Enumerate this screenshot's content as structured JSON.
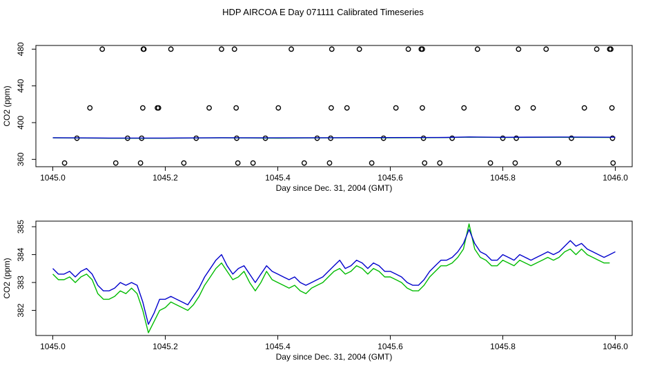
{
  "title": "HDP AIRCOA E  Day 071111  Calibrated Timeseries",
  "chart_data": [
    {
      "type": "scatter",
      "xlabel": "Day since Dec. 31, 2004 (GMT)",
      "ylabel": "CO2 (ppm)",
      "xlim": [
        1044.97,
        1046.03
      ],
      "ylim": [
        352,
        484
      ],
      "xticks": [
        1045.0,
        1045.2,
        1045.4,
        1045.6,
        1045.8,
        1046.0
      ],
      "xtick_labels": [
        "1045.0",
        "1045.2",
        "1045.4",
        "1045.6",
        "1045.8",
        "1046.0"
      ],
      "yticks": [
        360,
        400,
        440,
        480
      ],
      "ytick_labels": [
        "360",
        "400",
        "440",
        "480"
      ],
      "grid": false,
      "series": [
        {
          "color": "#000000",
          "marker": "open-circle",
          "points": [
            [
              1045.088,
              480
            ],
            [
              1045.161,
              480
            ],
            [
              1045.162,
              480
            ],
            [
              1045.21,
              480
            ],
            [
              1045.3,
              480
            ],
            [
              1045.323,
              480
            ],
            [
              1045.424,
              480
            ],
            [
              1045.496,
              480
            ],
            [
              1045.545,
              480
            ],
            [
              1045.632,
              480
            ],
            [
              1045.655,
              480
            ],
            [
              1045.657,
              480
            ],
            [
              1045.755,
              480
            ],
            [
              1045.828,
              480
            ],
            [
              1045.877,
              480
            ],
            [
              1045.967,
              480
            ],
            [
              1045.99,
              480
            ],
            [
              1045.992,
              480
            ],
            [
              1045.066,
              416
            ],
            [
              1045.16,
              416
            ],
            [
              1045.186,
              416
            ],
            [
              1045.188,
              416
            ],
            [
              1045.278,
              416
            ],
            [
              1045.326,
              416
            ],
            [
              1045.401,
              416
            ],
            [
              1045.495,
              416
            ],
            [
              1045.523,
              416
            ],
            [
              1045.61,
              416
            ],
            [
              1045.657,
              416
            ],
            [
              1045.731,
              416
            ],
            [
              1045.826,
              416
            ],
            [
              1045.854,
              416
            ],
            [
              1045.945,
              416
            ],
            [
              1045.994,
              416
            ],
            [
              1045.043,
              383
            ],
            [
              1045.133,
              383
            ],
            [
              1045.158,
              383
            ],
            [
              1045.255,
              383
            ],
            [
              1045.327,
              383
            ],
            [
              1045.378,
              383
            ],
            [
              1045.47,
              383
            ],
            [
              1045.494,
              383
            ],
            [
              1045.588,
              383
            ],
            [
              1045.659,
              383
            ],
            [
              1045.71,
              383
            ],
            [
              1045.8,
              383
            ],
            [
              1045.824,
              383
            ],
            [
              1045.922,
              383
            ],
            [
              1045.995,
              383
            ],
            [
              1045.021,
              356
            ],
            [
              1045.112,
              356
            ],
            [
              1045.156,
              356
            ],
            [
              1045.233,
              356
            ],
            [
              1045.329,
              356
            ],
            [
              1045.356,
              356
            ],
            [
              1045.447,
              356
            ],
            [
              1045.492,
              356
            ],
            [
              1045.567,
              356
            ],
            [
              1045.661,
              356
            ],
            [
              1045.688,
              356
            ],
            [
              1045.778,
              356
            ],
            [
              1045.822,
              356
            ],
            [
              1045.899,
              356
            ],
            [
              1045.996,
              356
            ]
          ]
        },
        {
          "color": "#00bb00",
          "x": [
            1045.0,
            1045.1,
            1045.2,
            1045.3,
            1045.4,
            1045.5,
            1045.6,
            1045.7,
            1045.74,
            1045.8,
            1045.9,
            1045.99
          ],
          "y": [
            383.4,
            383.0,
            383.0,
            383.4,
            383.1,
            383.4,
            383.5,
            383.7,
            384.2,
            383.8,
            384.0,
            383.8
          ]
        },
        {
          "color": "#0000cc",
          "x": [
            1045.0,
            1045.1,
            1045.2,
            1045.3,
            1045.4,
            1045.5,
            1045.6,
            1045.7,
            1045.74,
            1045.8,
            1045.9,
            1046.0
          ],
          "y": [
            383.6,
            383.2,
            383.2,
            383.6,
            383.4,
            383.6,
            383.7,
            383.9,
            384.4,
            384.0,
            384.3,
            384.1
          ]
        }
      ]
    },
    {
      "type": "line",
      "xlabel": "Day since Dec. 31, 2004 (GMT)",
      "ylabel": "CO2 (ppm)",
      "xlim": [
        1044.97,
        1046.03
      ],
      "ylim": [
        381.1,
        385.2
      ],
      "xticks": [
        1045.0,
        1045.2,
        1045.4,
        1045.6,
        1045.8,
        1046.0
      ],
      "xtick_labels": [
        "1045.0",
        "1045.2",
        "1045.4",
        "1045.6",
        "1045.8",
        "1046.0"
      ],
      "yticks": [
        382,
        383,
        384,
        385
      ],
      "ytick_labels": [
        "382",
        "383",
        "384",
        "385"
      ],
      "grid": false,
      "series": [
        {
          "color": "#00bb00",
          "x": [
            1045.0,
            1045.01,
            1045.02,
            1045.03,
            1045.04,
            1045.05,
            1045.06,
            1045.07,
            1045.08,
            1045.09,
            1045.1,
            1045.11,
            1045.12,
            1045.13,
            1045.14,
            1045.15,
            1045.16,
            1045.165,
            1045.17,
            1045.18,
            1045.19,
            1045.2,
            1045.21,
            1045.22,
            1045.23,
            1045.24,
            1045.25,
            1045.26,
            1045.27,
            1045.28,
            1045.29,
            1045.3,
            1045.31,
            1045.32,
            1045.33,
            1045.34,
            1045.35,
            1045.36,
            1045.37,
            1045.38,
            1045.39,
            1045.4,
            1045.41,
            1045.42,
            1045.43,
            1045.44,
            1045.45,
            1045.46,
            1045.47,
            1045.48,
            1045.49,
            1045.5,
            1045.51,
            1045.52,
            1045.53,
            1045.54,
            1045.55,
            1045.56,
            1045.57,
            1045.58,
            1045.59,
            1045.6,
            1045.61,
            1045.62,
            1045.63,
            1045.64,
            1045.65,
            1045.66,
            1045.67,
            1045.68,
            1045.69,
            1045.7,
            1045.71,
            1045.72,
            1045.73,
            1045.74,
            1045.75,
            1045.76,
            1045.77,
            1045.78,
            1045.79,
            1045.8,
            1045.81,
            1045.82,
            1045.83,
            1045.84,
            1045.85,
            1045.86,
            1045.87,
            1045.88,
            1045.89,
            1045.9,
            1045.91,
            1045.92,
            1045.93,
            1045.94,
            1045.95,
            1045.96,
            1045.97,
            1045.98,
            1045.99
          ],
          "y": [
            383.3,
            383.1,
            383.1,
            383.2,
            383.0,
            383.2,
            383.3,
            383.1,
            382.6,
            382.4,
            382.4,
            382.5,
            382.7,
            382.6,
            382.8,
            382.6,
            382.0,
            381.6,
            381.2,
            381.6,
            382.0,
            382.1,
            382.3,
            382.2,
            382.1,
            382.0,
            382.2,
            382.5,
            382.9,
            383.2,
            383.5,
            383.7,
            383.4,
            383.1,
            383.2,
            383.4,
            383.0,
            382.7,
            383.0,
            383.4,
            383.1,
            383.0,
            382.9,
            382.8,
            382.9,
            382.7,
            382.6,
            382.8,
            382.9,
            383.0,
            383.2,
            383.4,
            383.5,
            383.3,
            383.4,
            383.6,
            383.5,
            383.3,
            383.5,
            383.4,
            383.2,
            383.2,
            383.1,
            383.0,
            382.8,
            382.7,
            382.7,
            382.9,
            383.2,
            383.4,
            383.6,
            383.6,
            383.7,
            383.9,
            384.2,
            385.1,
            384.2,
            383.9,
            383.8,
            383.6,
            383.6,
            383.8,
            383.7,
            383.6,
            383.8,
            383.7,
            383.6,
            383.7,
            383.8,
            383.9,
            383.8,
            383.9,
            384.1,
            384.2,
            384.0,
            384.2,
            384.0,
            383.9,
            383.8,
            383.7,
            383.7
          ]
        },
        {
          "color": "#0000cc",
          "x": [
            1045.0,
            1045.01,
            1045.02,
            1045.03,
            1045.04,
            1045.05,
            1045.06,
            1045.07,
            1045.08,
            1045.09,
            1045.1,
            1045.11,
            1045.12,
            1045.13,
            1045.14,
            1045.15,
            1045.16,
            1045.165,
            1045.17,
            1045.18,
            1045.19,
            1045.2,
            1045.21,
            1045.22,
            1045.23,
            1045.24,
            1045.25,
            1045.26,
            1045.27,
            1045.28,
            1045.29,
            1045.3,
            1045.31,
            1045.32,
            1045.33,
            1045.34,
            1045.35,
            1045.36,
            1045.37,
            1045.38,
            1045.39,
            1045.4,
            1045.41,
            1045.42,
            1045.43,
            1045.44,
            1045.45,
            1045.46,
            1045.47,
            1045.48,
            1045.49,
            1045.5,
            1045.51,
            1045.52,
            1045.53,
            1045.54,
            1045.55,
            1045.56,
            1045.57,
            1045.58,
            1045.59,
            1045.6,
            1045.61,
            1045.62,
            1045.63,
            1045.64,
            1045.65,
            1045.66,
            1045.67,
            1045.68,
            1045.69,
            1045.7,
            1045.71,
            1045.72,
            1045.73,
            1045.74,
            1045.75,
            1045.76,
            1045.77,
            1045.78,
            1045.79,
            1045.8,
            1045.81,
            1045.82,
            1045.83,
            1045.84,
            1045.85,
            1045.86,
            1045.87,
            1045.88,
            1045.89,
            1045.9,
            1045.91,
            1045.92,
            1045.93,
            1045.94,
            1045.95,
            1045.96,
            1045.97,
            1045.98,
            1045.99,
            1046.0
          ],
          "y": [
            383.5,
            383.3,
            383.3,
            383.4,
            383.2,
            383.4,
            383.5,
            383.3,
            382.9,
            382.7,
            382.7,
            382.8,
            383.0,
            382.9,
            383.0,
            382.9,
            382.3,
            381.9,
            381.5,
            381.9,
            382.4,
            382.4,
            382.5,
            382.4,
            382.3,
            382.2,
            382.5,
            382.8,
            383.2,
            383.5,
            383.8,
            384.0,
            383.6,
            383.3,
            383.5,
            383.6,
            383.3,
            383.0,
            383.3,
            383.6,
            383.4,
            383.3,
            383.2,
            383.1,
            383.2,
            383.0,
            382.9,
            383.0,
            383.1,
            383.2,
            383.4,
            383.6,
            383.8,
            383.5,
            383.6,
            383.8,
            383.7,
            383.5,
            383.7,
            383.6,
            383.4,
            383.4,
            383.3,
            383.2,
            383.0,
            382.9,
            382.9,
            383.1,
            383.4,
            383.6,
            383.8,
            383.8,
            383.9,
            384.1,
            384.4,
            384.9,
            384.4,
            384.1,
            384.0,
            383.8,
            383.8,
            384.0,
            383.9,
            383.8,
            384.0,
            383.9,
            383.8,
            383.9,
            384.0,
            384.1,
            384.0,
            384.1,
            384.3,
            384.5,
            384.3,
            384.4,
            384.2,
            384.1,
            384.0,
            383.9,
            384.0,
            384.1
          ]
        }
      ]
    }
  ]
}
